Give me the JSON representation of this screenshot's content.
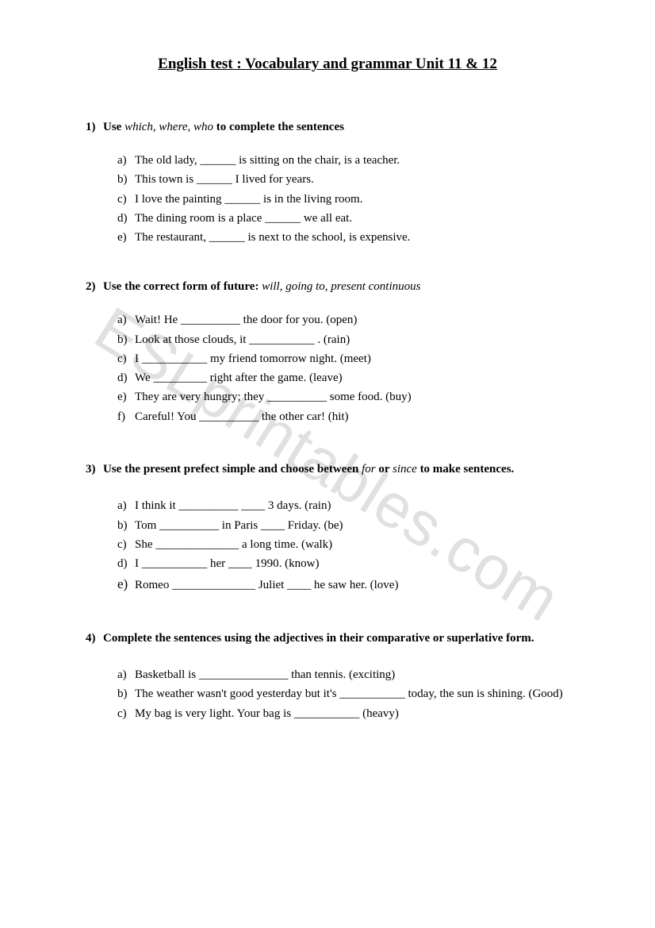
{
  "watermark_text": "ESLprintables.com",
  "title": "English test : Vocabulary and grammar Unit 11 & 12",
  "questions": [
    {
      "num": "1)",
      "heading_pre": "Use ",
      "heading_italic": "which, where, who",
      "heading_post": " to complete the sentences",
      "items": [
        {
          "letter": "a)",
          "text": "The old lady, ______ is sitting on the chair, is a teacher."
        },
        {
          "letter": "b)",
          "text": "This town is ______ I lived for years."
        },
        {
          "letter": "c)",
          "text": "I love the painting ______ is in the living room."
        },
        {
          "letter": "d)",
          "text": "The dining room is a place ______ we all eat."
        },
        {
          "letter": "e)",
          "text": "The restaurant, ______ is next to the school, is expensive."
        }
      ]
    },
    {
      "num": "2)",
      "heading_pre": "Use the correct form of future: ",
      "heading_italic": "will, going to, present continuous",
      "heading_post": "",
      "items": [
        {
          "letter": "a)",
          "text": "Wait! He __________ the door for you. (open)"
        },
        {
          "letter": "b)",
          "text": "Look at those clouds, it ___________ . (rain)"
        },
        {
          "letter": "c)",
          "text": "I ___________ my friend tomorrow night. (meet)"
        },
        {
          "letter": "d)",
          "text": "We _________ right after the game. (leave)"
        },
        {
          "letter": "e)",
          "text": "They are very hungry; they __________ some food. (buy)"
        },
        {
          "letter": "f)",
          "text": "Careful! You __________ the other car! (hit)"
        }
      ]
    },
    {
      "num": "3)",
      "heading_pre": "Use the present prefect simple and choose between ",
      "heading_italic": "for",
      "heading_mid": " or ",
      "heading_italic2": "since",
      "heading_post": " to make sentences.",
      "items": [
        {
          "letter": "a)",
          "text": "I think it __________ ____ 3 days. (rain)"
        },
        {
          "letter": "b)",
          "text": "Tom __________ in Paris ____ Friday. (be)"
        },
        {
          "letter": "c)",
          "text": "She ______________ a long time. (walk)"
        },
        {
          "letter": "d)",
          "text": "I ___________ her ____ 1990. (know)"
        },
        {
          "letter": "e)",
          "text": "Romeo ______________ Juliet ____ he saw her. (love)",
          "bigE": true
        }
      ]
    },
    {
      "num": "4)",
      "heading_pre": "Complete the sentences using the adjectives in their comparative or superlative form.",
      "heading_italic": "",
      "heading_post": "",
      "items": [
        {
          "letter": "a)",
          "text": "Basketball is _______________ than tennis. (exciting)"
        },
        {
          "letter": "b)",
          "text": "The weather wasn't good yesterday but it's ___________ today, the sun is shining. (Good)"
        },
        {
          "letter": "c)",
          "text": "My bag is very light. Your bag is ___________ (heavy)"
        }
      ]
    }
  ]
}
